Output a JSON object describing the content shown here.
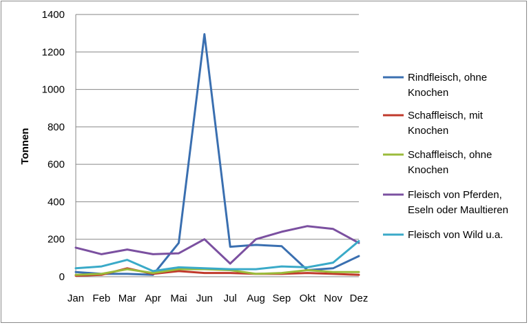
{
  "chart_data": {
    "type": "line",
    "title": "",
    "xlabel": "",
    "ylabel": "Tonnen",
    "ylim": [
      0,
      1400
    ],
    "yticks": [
      0,
      200,
      400,
      600,
      800,
      1000,
      1200,
      1400
    ],
    "grid": true,
    "legend_position": "right",
    "categories": [
      "Jan",
      "Feb",
      "Mar",
      "Apr",
      "Mai",
      "Jun",
      "Jul",
      "Aug",
      "Sep",
      "Okt",
      "Nov",
      "Dez"
    ],
    "series": [
      {
        "name": "Rindfleisch, ohne Knochen",
        "legend_lines": [
          "Rindfleisch, ohne",
          "Knochen"
        ],
        "color": "#3A6FB0",
        "values": [
          25,
          15,
          15,
          10,
          180,
          1295,
          160,
          170,
          163,
          35,
          45,
          110
        ]
      },
      {
        "name": "Schaffleisch, mit Knochen",
        "legend_lines": [
          "Schaffleisch, mit",
          "Knochen"
        ],
        "color": "#C0392B",
        "values": [
          5,
          10,
          45,
          15,
          30,
          20,
          20,
          15,
          15,
          20,
          15,
          10
        ]
      },
      {
        "name": "Schaffleisch, ohne Knochen",
        "legend_lines": [
          "Schaffleisch, ohne",
          "Knochen"
        ],
        "color": "#9BBB3B",
        "values": [
          10,
          15,
          40,
          20,
          40,
          40,
          35,
          15,
          20,
          35,
          25,
          25
        ]
      },
      {
        "name": "Fleisch von Pferden, Eseln oder Maultieren",
        "legend_lines": [
          "Fleisch von Pferden,",
          "Eseln oder Maultieren"
        ],
        "color": "#7B50A0",
        "values": [
          155,
          120,
          145,
          120,
          125,
          200,
          70,
          200,
          240,
          270,
          255,
          180
        ]
      },
      {
        "name": "Fleisch von Wild u.a.",
        "legend_lines": [
          "Fleisch von Wild u.a."
        ],
        "color": "#3AAAC8",
        "values": [
          45,
          55,
          90,
          30,
          50,
          45,
          40,
          40,
          55,
          50,
          75,
          190
        ]
      }
    ]
  }
}
